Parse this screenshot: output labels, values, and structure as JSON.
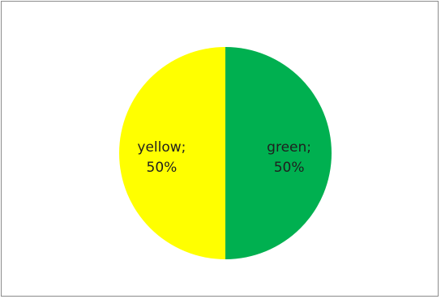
{
  "chart_data": {
    "type": "pie",
    "categories": [
      "green",
      "yellow"
    ],
    "values": [
      50,
      50
    ],
    "colors": [
      "#00b050",
      "#ffff00"
    ],
    "data_labels": [
      {
        "line1": "green;",
        "line2": "50%"
      },
      {
        "line1": "yellow;",
        "line2": "50%"
      }
    ],
    "title": "",
    "legend": "none"
  }
}
